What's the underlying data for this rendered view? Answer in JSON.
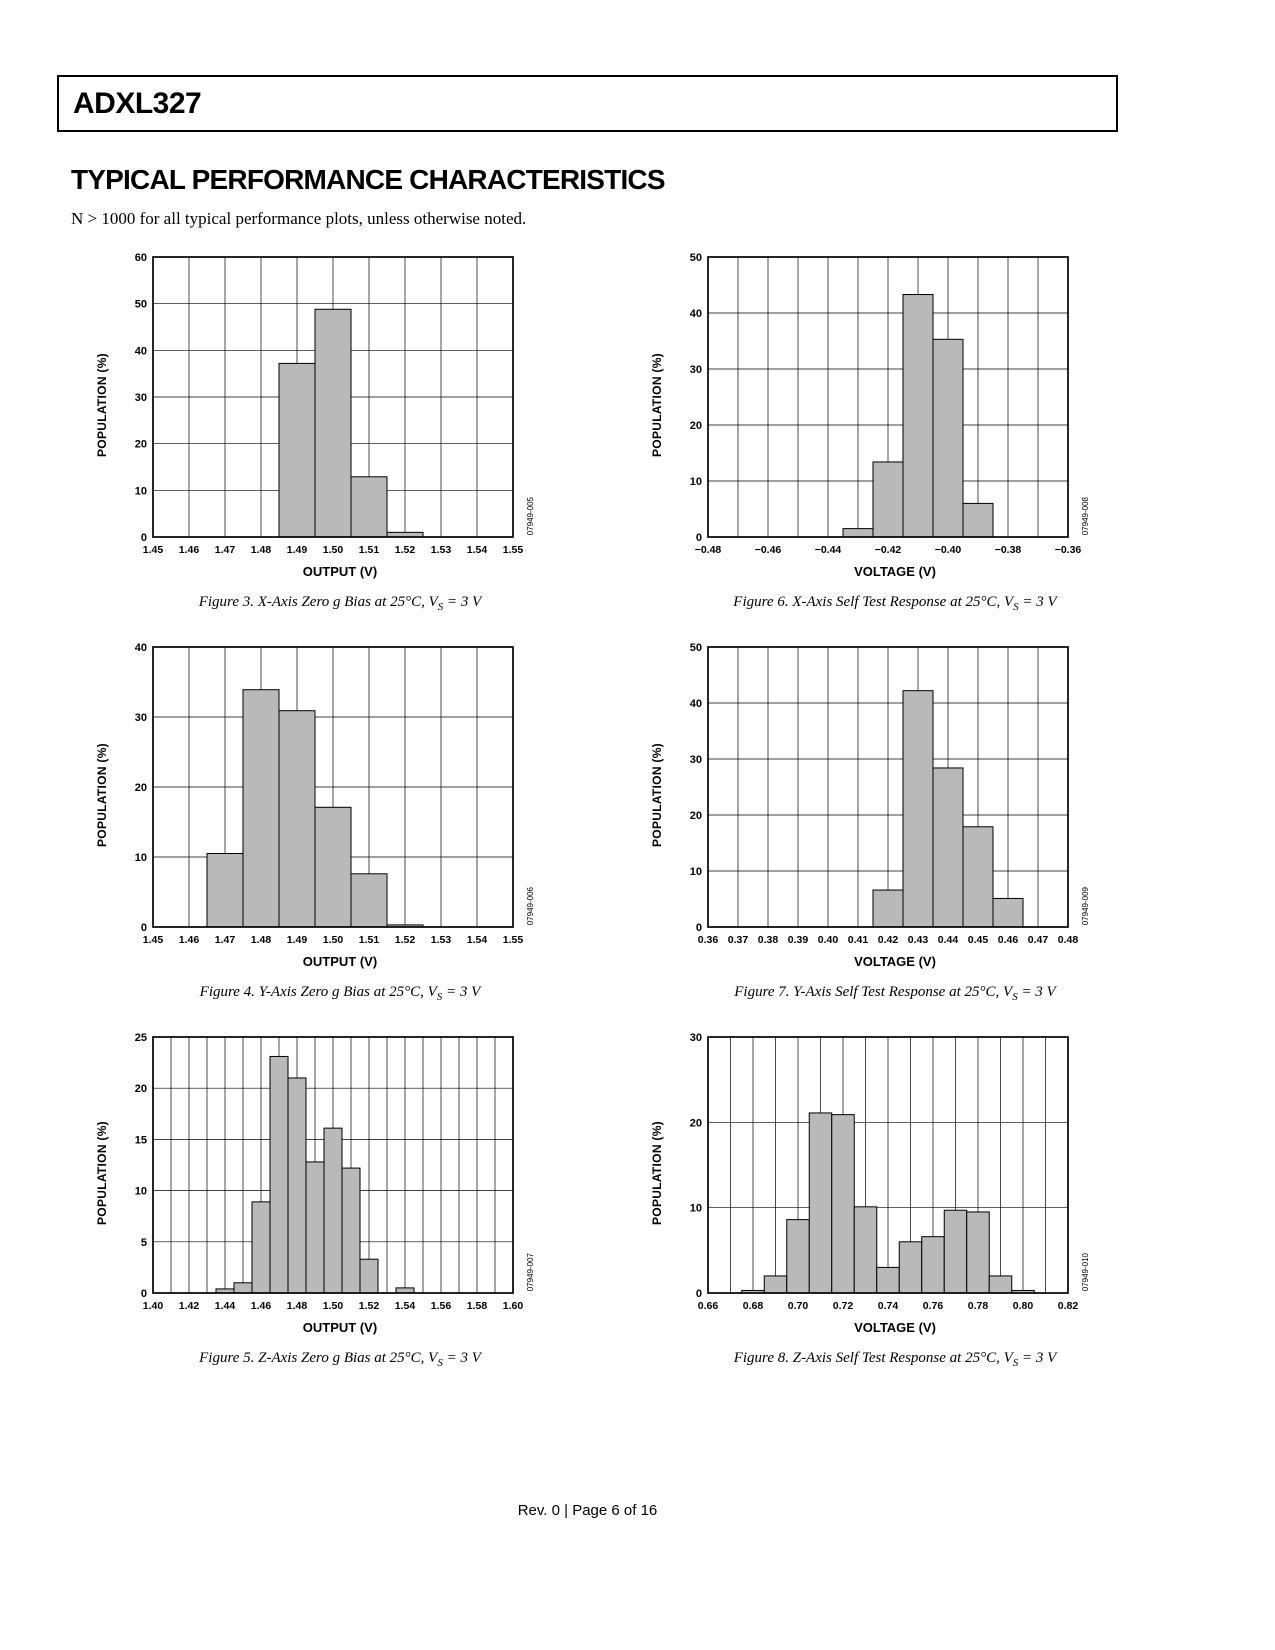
{
  "page": {
    "part_number": "ADXL327",
    "section_title": "TYPICAL PERFORMANCE CHARACTERISTICS",
    "note": "N > 1000 for all typical performance plots, unless otherwise noted.",
    "footer": "Rev. 0 | Page 6 of 16"
  },
  "chart_data": [
    {
      "type": "bar",
      "code": "07949-005",
      "xlabel": "OUTPUT (V)",
      "ylabel": "POPULATION (%)",
      "xlim": [
        1.45,
        1.55
      ],
      "ylim": [
        0,
        60
      ],
      "ystep": 10,
      "label_every": 1,
      "xtick_labels": [
        "1.45",
        "1.46",
        "1.47",
        "1.48",
        "1.49",
        "1.50",
        "1.51",
        "1.52",
        "1.53",
        "1.54",
        "1.55"
      ],
      "values": [
        0,
        0,
        0,
        0,
        37.2,
        48.8,
        12.9,
        1.0,
        0,
        0,
        0
      ],
      "caption_pre": "Figure 3. X-Axis Zero g Bias at 25°C, V",
      "caption_sub": "S",
      "caption_post": " = 3 V"
    },
    {
      "type": "bar",
      "code": "07949-008",
      "xlabel": "VOLTAGE (V)",
      "ylabel": "POPULATION (%)",
      "xlim": [
        -0.48,
        -0.36
      ],
      "ylim": [
        0,
        50
      ],
      "ystep": 10,
      "label_every": 2,
      "xtick_labels": [
        "−0.48",
        "−0.46",
        "−0.44",
        "−0.42",
        "−0.40",
        "−0.38",
        "−0.36"
      ],
      "values": [
        0,
        0,
        0,
        0,
        0,
        1.5,
        13.4,
        43.3,
        35.3,
        6.0,
        0,
        0,
        0
      ],
      "caption_pre": "Figure 6. X-Axis Self Test Response at 25°C, V",
      "caption_sub": "S",
      "caption_post": " = 3 V"
    },
    {
      "type": "bar",
      "code": "07949-006",
      "xlabel": "OUTPUT (V)",
      "ylabel": "POPULATION (%)",
      "xlim": [
        1.45,
        1.55
      ],
      "ylim": [
        0,
        40
      ],
      "ystep": 10,
      "label_every": 1,
      "xtick_labels": [
        "1.45",
        "1.46",
        "1.47",
        "1.48",
        "1.49",
        "1.50",
        "1.51",
        "1.52",
        "1.53",
        "1.54",
        "1.55"
      ],
      "values": [
        0,
        0,
        10.5,
        33.9,
        30.9,
        17.1,
        7.6,
        0.3,
        0,
        0,
        0
      ],
      "caption_pre": "Figure 4. Y-Axis Zero g Bias at 25°C, V",
      "caption_sub": "S",
      "caption_post": " = 3 V"
    },
    {
      "type": "bar",
      "code": "07949-009",
      "xlabel": "VOLTAGE (V)",
      "ylabel": "POPULATION (%)",
      "xlim": [
        0.36,
        0.48
      ],
      "ylim": [
        0,
        50
      ],
      "ystep": 10,
      "label_every": 1,
      "xtick_labels": [
        "0.36",
        "0.37",
        "0.38",
        "0.39",
        "0.40",
        "0.41",
        "0.42",
        "0.43",
        "0.44",
        "0.45",
        "0.46",
        "0.47",
        "0.48"
      ],
      "values": [
        0,
        0,
        0,
        0,
        0,
        0,
        6.6,
        42.2,
        28.4,
        17.9,
        5.1,
        0,
        0
      ],
      "caption_pre": "Figure 7. Y-Axis Self Test Response at 25°C, V",
      "caption_sub": "S",
      "caption_post": " = 3 V"
    },
    {
      "type": "bar",
      "code": "07949-007",
      "xlabel": "OUTPUT (V)",
      "ylabel": "POPULATION (%)",
      "xlim": [
        1.4,
        1.6
      ],
      "ylim": [
        0,
        25
      ],
      "ystep": 5,
      "label_every": 2,
      "xtick_labels": [
        "1.40",
        "1.42",
        "1.44",
        "1.46",
        "1.48",
        "1.50",
        "1.52",
        "1.54",
        "1.56",
        "1.58",
        "1.60"
      ],
      "values": [
        0,
        0,
        0,
        0,
        0.4,
        1.0,
        8.9,
        23.1,
        21.0,
        12.8,
        16.1,
        12.2,
        3.3,
        0,
        0.5,
        0,
        0,
        0,
        0,
        0,
        0
      ],
      "caption_pre": "Figure 5. Z-Axis Zero g Bias at 25°C, V",
      "caption_sub": "S",
      "caption_post": " = 3 V"
    },
    {
      "type": "bar",
      "code": "07949-010",
      "xlabel": "VOLTAGE (V)",
      "ylabel": "POPULATION (%)",
      "xlim": [
        0.66,
        0.82
      ],
      "ylim": [
        0,
        30
      ],
      "ystep": 10,
      "label_every": 2,
      "xtick_labels": [
        "0.66",
        "0.68",
        "0.70",
        "0.72",
        "0.74",
        "0.76",
        "0.78",
        "0.80",
        "0.82"
      ],
      "values": [
        0,
        0,
        0.3,
        2.0,
        8.6,
        21.1,
        20.9,
        10.1,
        3.0,
        6.0,
        6.6,
        9.7,
        9.5,
        2.0,
        0.3,
        0,
        0
      ],
      "caption_pre": "Figure 8. Z-Axis Self Test Response at 25°C, V",
      "caption_sub": "S",
      "caption_post": " = 3 V"
    }
  ]
}
